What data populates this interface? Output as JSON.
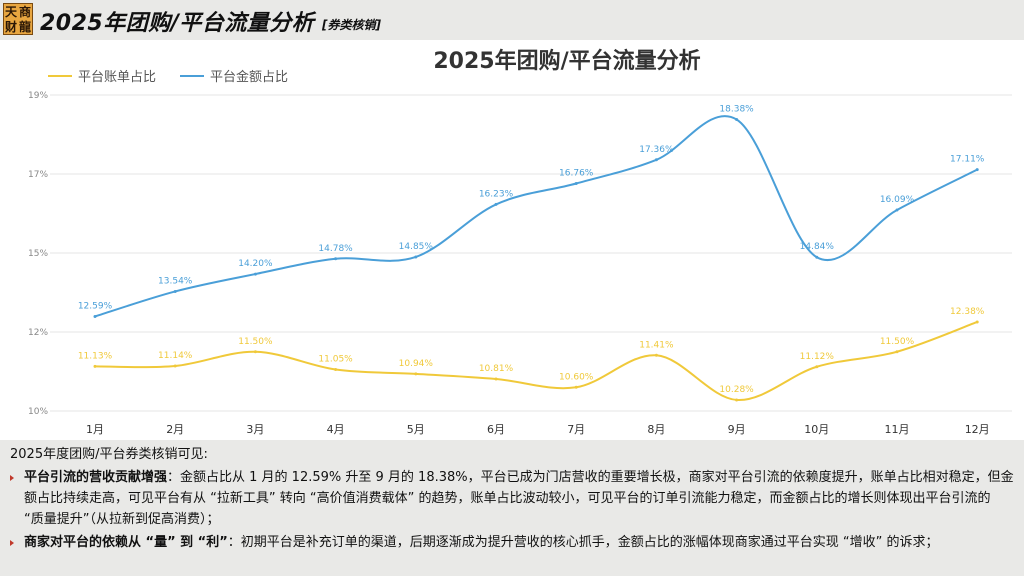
{
  "header": {
    "logo_chars": [
      "天",
      "商",
      "财",
      "龍"
    ],
    "title": "2025年团购/平台流量分析",
    "subtitle": "[券类核销]"
  },
  "colors": {
    "series_bill": "#f0c93a",
    "series_amount": "#4a9fd8",
    "bullet_mark": "#c0392b"
  },
  "chart_data": {
    "type": "line",
    "title": "2025年团购/平台流量分析",
    "categories": [
      "1月",
      "2月",
      "3月",
      "4月",
      "5月",
      "6月",
      "7月",
      "8月",
      "9月",
      "10月",
      "11月",
      "12月"
    ],
    "series": [
      {
        "name": "平台账单占比",
        "values": [
          11.13,
          11.14,
          11.5,
          11.05,
          10.94,
          10.81,
          10.6,
          11.41,
          10.28,
          11.12,
          11.5,
          12.38
        ],
        "labels": [
          "11.13%",
          "11.14%",
          "11.50%",
          "11.05%",
          "10.94%",
          "10.81%",
          "10.60%",
          "11.41%",
          "10.28%",
          "11.12%",
          "11.50%",
          "12.38%"
        ]
      },
      {
        "name": "平台金额占比",
        "values": [
          12.59,
          13.54,
          14.2,
          14.78,
          14.85,
          16.23,
          16.76,
          17.36,
          18.38,
          14.84,
          16.09,
          17.11
        ],
        "labels": [
          "12.59%",
          "13.54%",
          "14.20%",
          "14.78%",
          "14.85%",
          "16.23%",
          "16.76%",
          "17.36%",
          "18.38%",
          "14.84%",
          "16.09%",
          "17.11%"
        ]
      }
    ],
    "y_ticks": [
      {
        "value": 10,
        "label": "10%"
      },
      {
        "value": 12,
        "label": "12%"
      },
      {
        "value": 15,
        "label": "15%"
      },
      {
        "value": 17,
        "label": "17%"
      },
      {
        "value": 19,
        "label": "19%"
      }
    ],
    "ylim": [
      10,
      19
    ],
    "grid": true,
    "legend_position": "top-left"
  },
  "notes": {
    "intro": "2025年度团购/平台券类核销可见:",
    "bullets": [
      {
        "bold": "平台引流的营收贡献增强",
        "text": "：金额占比从 1 月的 12.59% 升至 9 月的 18.38%，平台已成为门店营收的重要增长极，商家对平台引流的依赖度提升，账单占比相对稳定，但金额占比持续走高，可见平台有从 “拉新工具” 转向 “高价值消费载体” 的趋势，账单占比波动较小，可见平台的订单引流能力稳定，而金额占比的增长则体现出平台引流的 “质量提升”（从拉新到促高消费）；"
      },
      {
        "bold": "商家对平台的依赖从 “量” 到 “利”",
        "text": "：初期平台是补充订单的渠道，后期逐渐成为提升营收的核心抓手，金额占比的涨幅体现商家通过平台实现 “增收” 的诉求；"
      }
    ]
  }
}
